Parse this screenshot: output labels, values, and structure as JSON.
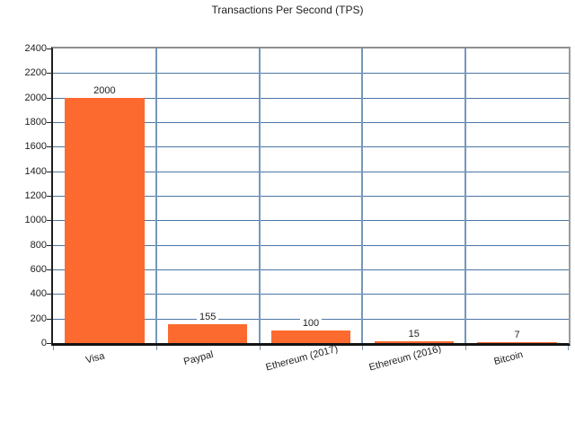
{
  "chart_data": {
    "type": "bar",
    "title": "Transactions Per Second (TPS)",
    "categories": [
      "Visa",
      "Paypal",
      "Ethereum (2017)",
      "Ethereum (2016)",
      "Bitcoin"
    ],
    "values": [
      2000,
      155,
      100,
      15,
      7
    ],
    "bar_labels": [
      "2000",
      "155",
      "100",
      "15",
      "7"
    ],
    "xlabel": "",
    "ylabel": "",
    "ylim": [
      0,
      2400
    ],
    "ytick_step": 200,
    "yticks": [
      0,
      200,
      400,
      600,
      800,
      1000,
      1200,
      1400,
      1600,
      1800,
      2000,
      2200,
      2400
    ],
    "grid": "on",
    "legend": "none",
    "colors": {
      "bar": "#fc6a2f",
      "grid_horizontal": "#4a76a3",
      "grid_vertical": "#7498bc",
      "frame_gray": "#8f8f8f",
      "axis_black": "#1a1a1a",
      "text": "#202020",
      "background": "#ffffff"
    }
  }
}
